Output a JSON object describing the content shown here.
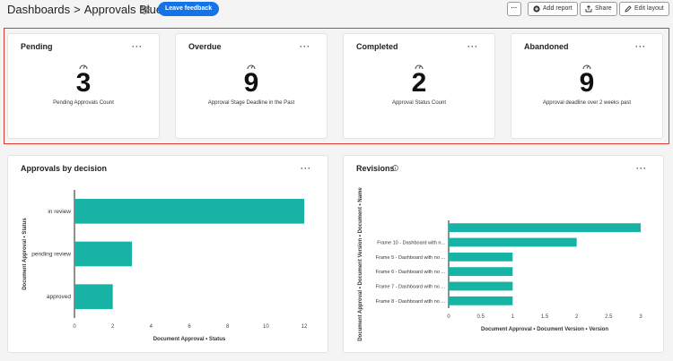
{
  "header": {
    "breadcrumb_root": "Dashboards",
    "breadcrumb_sep": ">",
    "breadcrumb_current": "Approvals Blueprint",
    "feedback_label": "Leave feedback",
    "more_label": "···",
    "add_report_label": "Add report",
    "share_label": "Share",
    "edit_layout_label": "Edit layout"
  },
  "colors": {
    "accent": "#1473e6",
    "bar": "#17b3a5",
    "highlight": "#e03c31"
  },
  "kpis": [
    {
      "title": "Pending",
      "value": "3",
      "subtitle": "Pending Approvals Count"
    },
    {
      "title": "Overdue",
      "value": "9",
      "subtitle": "Approval Stage Deadline in the Past"
    },
    {
      "title": "Completed",
      "value": "2",
      "subtitle": "Approval Status Count"
    },
    {
      "title": "Abandoned",
      "value": "9",
      "subtitle": "Approval deadline over 2 weeks past"
    }
  ],
  "card_more": "···",
  "chart_data": [
    {
      "type": "bar",
      "orientation": "horizontal",
      "title": "Approvals by decision",
      "categories": [
        "in review",
        "pending review",
        "approved"
      ],
      "values": [
        12,
        3,
        2
      ],
      "xlabel": "Document Approval • Status",
      "ylabel": "Document Approval • Status",
      "xlim": [
        0,
        12
      ],
      "xticks": [
        "0",
        "2",
        "4",
        "6",
        "8",
        "10",
        "12"
      ]
    },
    {
      "type": "bar",
      "orientation": "horizontal",
      "title": "Revisions",
      "categories": [
        "",
        "Frame 10 - Dashboard with n...",
        "Frame 5 - Dashboard with no ...",
        "Frame 6 - Dashboard with no ...",
        "Frame 7 - Dashboard with no ...",
        "Frame 8 - Dashboard with no ..."
      ],
      "values": [
        3,
        2,
        1,
        1,
        1,
        1
      ],
      "xlabel": "Document Approval • Document Version • Version",
      "ylabel": "Document Approval • Document Version • Document • Name",
      "xlim": [
        0,
        3
      ],
      "xticks": [
        "0",
        "0.5",
        "1",
        "1.5",
        "2",
        "2.5",
        "3"
      ]
    }
  ]
}
